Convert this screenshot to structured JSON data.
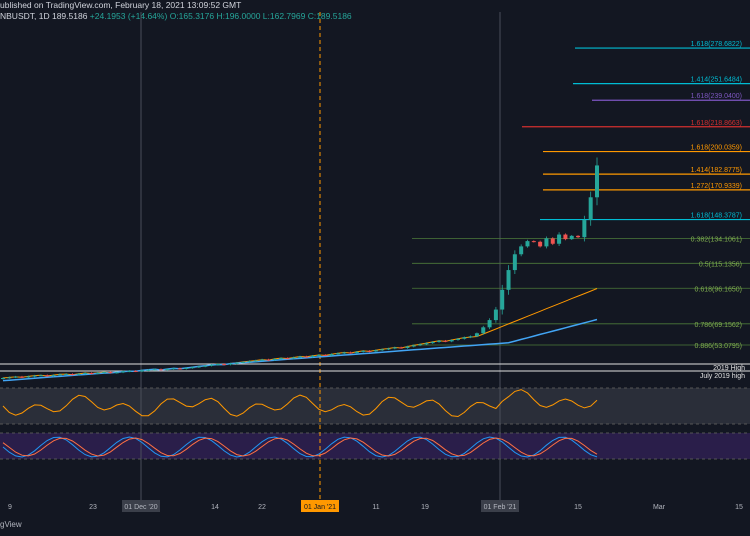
{
  "header": {
    "published": "ublished on TradingView.com, February 18, 2021 13:09:52 GMT",
    "symbol": "NBUSDT, 1D",
    "last": "189.5186",
    "change": "+24.1953 (+14.64%)",
    "ohlc": "O:165.3176 H:196.0000 L:162.7969 C:189.5186"
  },
  "footer": {
    "brand": "gView"
  },
  "colors": {
    "background": "#131722",
    "up": "#26a69a",
    "down": "#ef5350",
    "fib": "#8bc34a"
  },
  "chart_data": {
    "type": "candlestick",
    "x_ticks": [
      "9",
      "01 Dec '20",
      "23",
      "14",
      "22",
      "01 Jan '21",
      "11",
      "19",
      "01 Feb '21",
      "15",
      "Mar",
      "15"
    ],
    "resistance_levels": [
      {
        "label": "1.618(278.6822)",
        "value": 278.68,
        "color": "#00bcd4"
      },
      {
        "label": "1.414(251.6484)",
        "value": 251.65,
        "color": "#00bcd4"
      },
      {
        "label": "1.618(239.0400)",
        "value": 239.04,
        "color": "#7e57c2"
      },
      {
        "label": "1.618(218.8663)",
        "value": 218.87,
        "color": "#d32f2f"
      },
      {
        "label": "1.618(200.0359)",
        "value": 200.04,
        "color": "#ff9800"
      },
      {
        "label": "1.414(182.8775)",
        "value": 182.88,
        "color": "#ff9800"
      },
      {
        "label": "1.272(170.9339)",
        "value": 170.93,
        "color": "#ff9800"
      },
      {
        "label": "1.618(148.3787)",
        "value": 148.38,
        "color": "#00bcd4"
      }
    ],
    "fib_retracements": [
      {
        "label": "0.382(134.1061)",
        "value": 134.11
      },
      {
        "label": "0.5(115.1356)",
        "value": 115.14
      },
      {
        "label": "0.618(96.1650)",
        "value": 96.17
      },
      {
        "label": "0.786(69.1562)",
        "value": 69.16
      },
      {
        "label": "0.886(53.0795)",
        "value": 53.08
      }
    ],
    "horizontal_labels": [
      "2019 High",
      "July 2019 high"
    ],
    "closes": [
      28,
      28.5,
      29,
      28.6,
      29.2,
      29.8,
      30.1,
      29.5,
      30.2,
      30.8,
      31,
      30.5,
      31.2,
      31.8,
      31.4,
      32,
      32.5,
      31.9,
      32.3,
      33,
      33.4,
      33.1,
      33.8,
      34.2,
      34.6,
      34.1,
      34.8,
      35.3,
      35,
      35.6,
      36.2,
      36.8,
      37.3,
      38,
      38.6,
      38.2,
      39,
      39.6,
      40.2,
      40.8,
      41.3,
      42,
      41.6,
      42.5,
      43.1,
      42.8,
      43.6,
      44.3,
      44,
      44.9,
      45.5,
      45.2,
      46.1,
      46.8,
      47.4,
      47,
      47.9,
      48.6,
      48.2,
      49.1,
      49.8,
      50.4,
      51.2,
      50.8,
      51.9,
      52.8,
      53.6,
      54.5,
      55.4,
      56.3,
      55.8,
      56.9,
      57.8,
      58.9,
      59.7,
      62,
      66.5,
      72,
      80,
      95,
      110,
      122,
      128,
      132,
      131.5,
      128,
      134,
      130,
      137,
      133.5,
      136,
      135,
      148,
      165.3,
      189.5
    ]
  }
}
